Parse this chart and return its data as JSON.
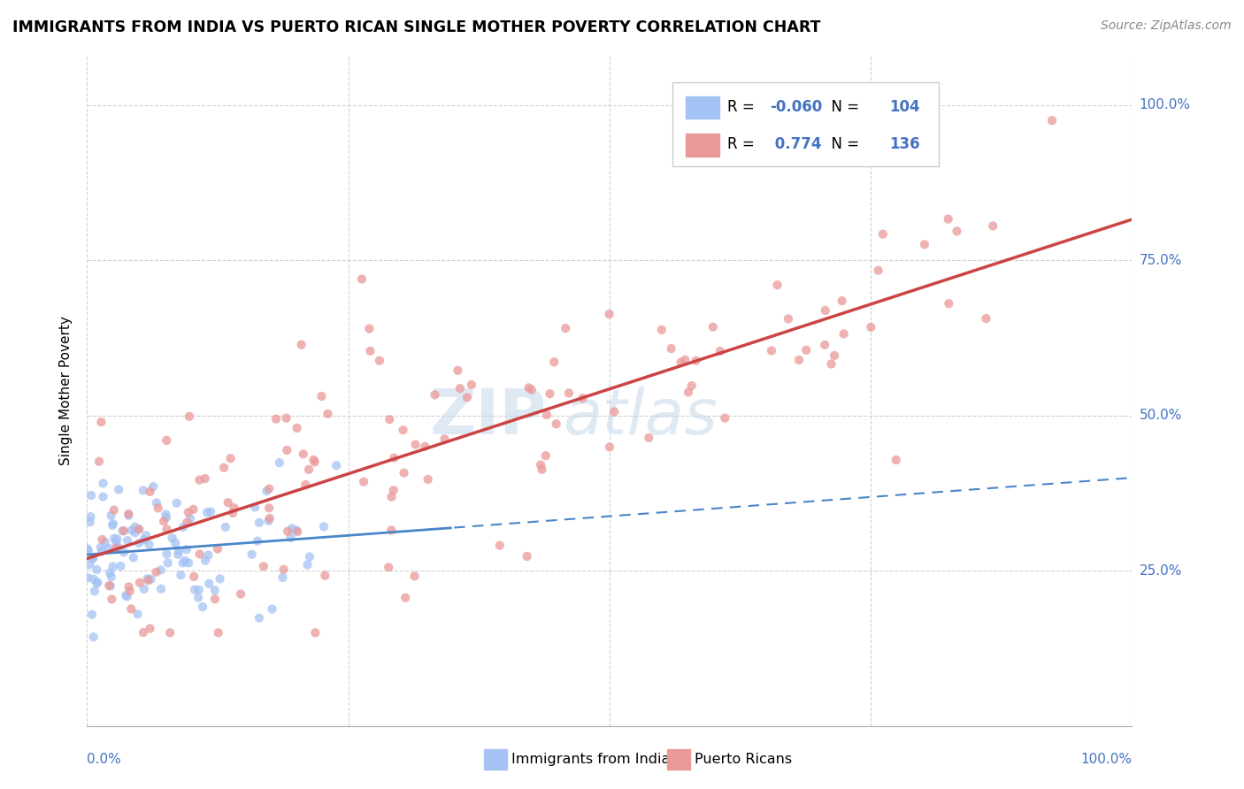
{
  "title": "IMMIGRANTS FROM INDIA VS PUERTO RICAN SINGLE MOTHER POVERTY CORRELATION CHART",
  "source": "Source: ZipAtlas.com",
  "ylabel": "Single Mother Poverty",
  "legend_label1": "Immigrants from India",
  "legend_label2": "Puerto Ricans",
  "color_india": "#a4c2f4",
  "color_pr": "#ea9999",
  "color_india_line": "#4a86c8",
  "color_pr_line": "#cc4444",
  "R_india": -0.06,
  "N_india": 104,
  "R_pr": 0.774,
  "N_pr": 136,
  "background_color": "#ffffff",
  "grid_color": "#cccccc",
  "text_color_blue": "#4472c4",
  "title_color": "#000000",
  "source_color": "#888888",
  "ylim_min": 0.0,
  "ylim_max": 1.08,
  "xlim_min": 0.0,
  "xlim_max": 1.0,
  "india_seed": 42,
  "pr_seed": 99,
  "watermark_zip_color": "#c8d8e8",
  "watermark_atlas_color": "#b0c8dc"
}
